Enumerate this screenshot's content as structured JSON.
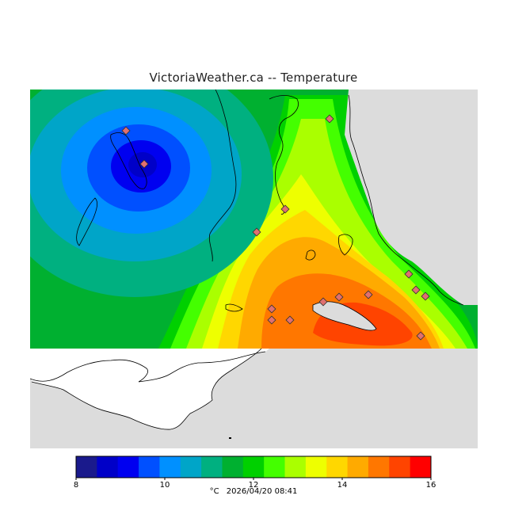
{
  "title": "VictoriaWeather.ca -- Temperature",
  "colors": {
    "land_gray": "#dcdcdc",
    "water_white": "#ffffff",
    "coast": "#000000",
    "station_fill": "#e07070"
  },
  "legend": {
    "min": 8,
    "max": 16,
    "bands": [
      "#1a1a8c",
      "#0000c8",
      "#0000f0",
      "#0050ff",
      "#0090ff",
      "#00a5c8",
      "#00b080",
      "#00b030",
      "#00d000",
      "#44ff00",
      "#aaff00",
      "#eeff00",
      "#ffd700",
      "#ffaa00",
      "#ff7700",
      "#ff4400",
      "#ff0000"
    ],
    "tick_labels": [
      {
        "value": 8,
        "label": "8"
      },
      {
        "value": 10,
        "label": "10"
      },
      {
        "value": 12,
        "label": "12"
      },
      {
        "value": 14,
        "label": "14"
      },
      {
        "value": 16,
        "label": "16"
      }
    ]
  },
  "footer": {
    "unit": "°C",
    "timestamp": "2026/04/20 08:41"
  }
}
